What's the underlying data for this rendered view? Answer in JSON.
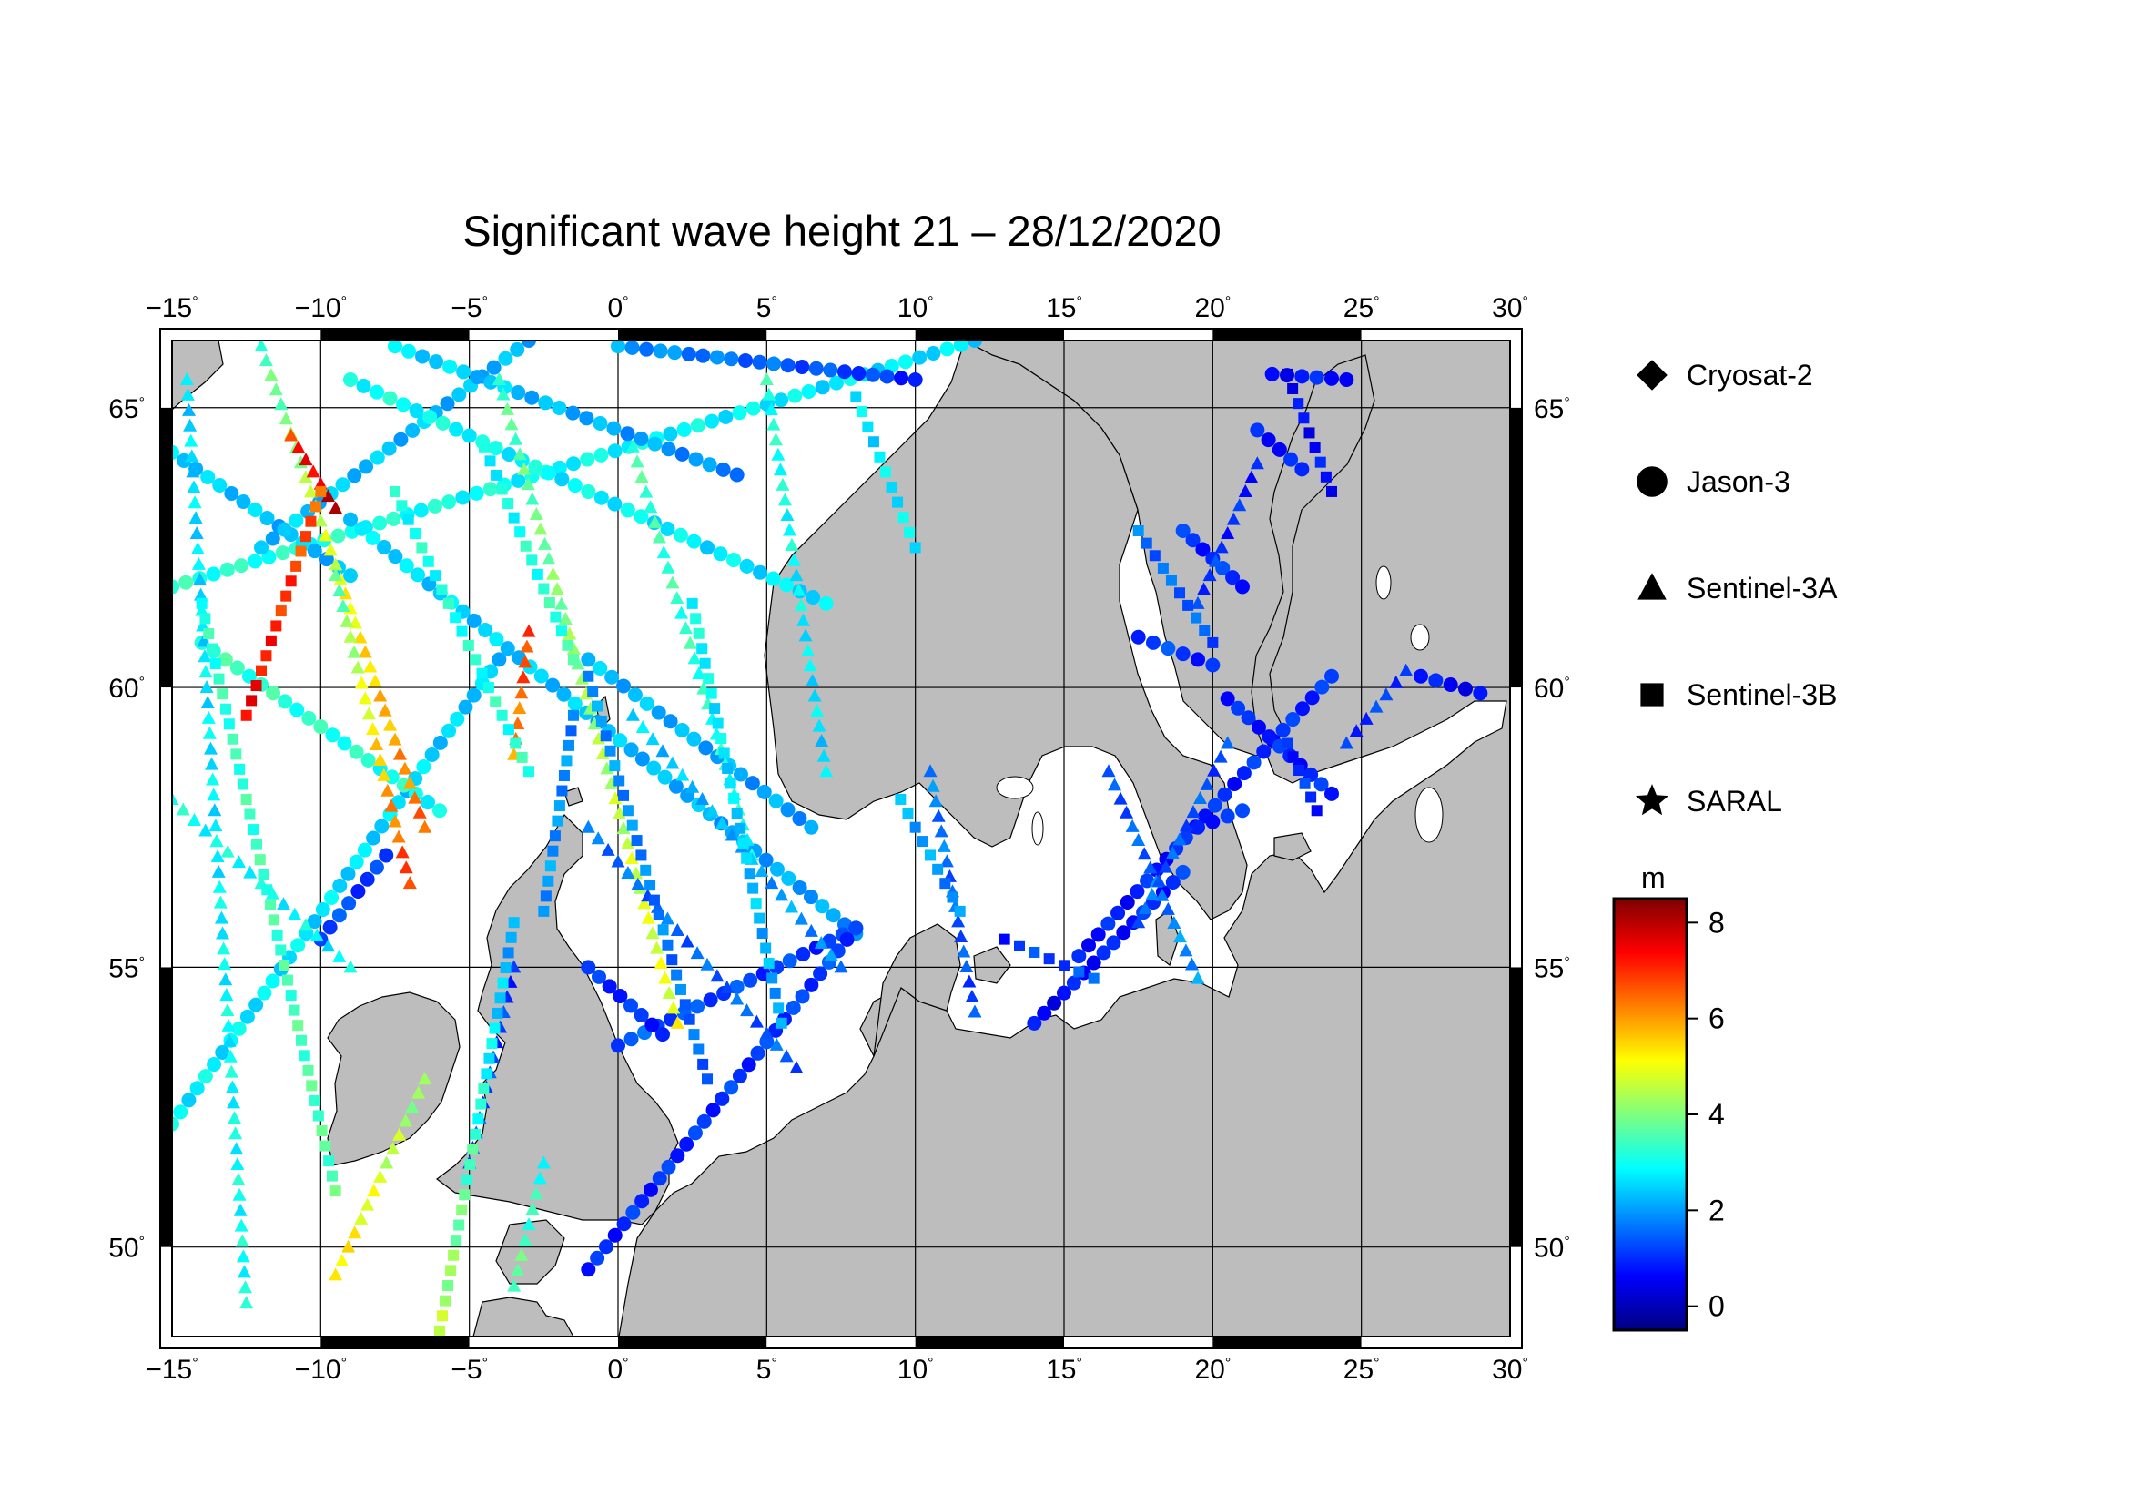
{
  "title": "Significant wave height 21 – 28/12/2020",
  "lon_ticks": [
    "−15",
    "−10",
    "−5",
    "0",
    "5",
    "10",
    "15",
    "20",
    "25",
    "30"
  ],
  "lat_ticks": [
    "65",
    "60",
    "55",
    "50"
  ],
  "degree_symbol": "°",
  "legend": {
    "items": [
      {
        "label": "Cryosat-2",
        "marker": "diamond"
      },
      {
        "label": "Jason-3",
        "marker": "circle"
      },
      {
        "label": "Sentinel-3A",
        "marker": "triangle"
      },
      {
        "label": "Sentinel-3B",
        "marker": "square"
      },
      {
        "label": "SARAL",
        "marker": "star"
      }
    ]
  },
  "colorbar": {
    "unit": "m",
    "ticks": [
      "8",
      "6",
      "4",
      "2",
      "0"
    ],
    "range": [
      -0.5,
      8.5
    ],
    "colormap": "jet"
  },
  "colors": {
    "land": "#bdbdbd",
    "sea": "#ffffff",
    "frame": "#000000"
  },
  "chart_data": {
    "type": "scatter",
    "title": "Significant wave height 21 – 28/12/2020",
    "xlim": [
      -15,
      30
    ],
    "ylim": [
      48.4,
      66.2
    ],
    "unit": "m",
    "tracks": [
      {
        "satellite": "Jason-3",
        "from": [
          -15,
          61.8
        ],
        "to": [
          12,
          66.2
        ],
        "hs": [
          3.2,
          2.6
        ]
      },
      {
        "satellite": "Jason-3",
        "from": [
          -15,
          52.2
        ],
        "to": [
          -4,
          60.5
        ],
        "hs": [
          2.8,
          2.4
        ]
      },
      {
        "satellite": "Jason-3",
        "from": [
          -15,
          64.2
        ],
        "to": [
          -9,
          62.0
        ],
        "hs": [
          2.5,
          2.2
        ]
      },
      {
        "satellite": "Jason-3",
        "from": [
          -12,
          62.5
        ],
        "to": [
          -3,
          66.2
        ],
        "hs": [
          2.4,
          2.2
        ]
      },
      {
        "satellite": "Jason-3",
        "from": [
          -14,
          60.8
        ],
        "to": [
          -6,
          57.8
        ],
        "hs": [
          3.4,
          3.0
        ]
      },
      {
        "satellite": "Jason-3",
        "from": [
          -9,
          63.0
        ],
        "to": [
          8,
          55.6
        ],
        "hs": [
          2.6,
          2.0
        ]
      },
      {
        "satellite": "Jason-3",
        "from": [
          -1,
          60.5
        ],
        "to": [
          6.5,
          57.5
        ],
        "hs": [
          2.3,
          2.0
        ]
      },
      {
        "satellite": "Jason-3",
        "from": [
          -7.5,
          66.1
        ],
        "to": [
          4,
          63.8
        ],
        "hs": [
          2.6,
          1.8
        ]
      },
      {
        "satellite": "Jason-3",
        "from": [
          0,
          66.1
        ],
        "to": [
          10,
          65.5
        ],
        "hs": [
          2.0,
          1.0
        ]
      },
      {
        "satellite": "Jason-3",
        "from": [
          -9,
          65.5
        ],
        "to": [
          7,
          61.5
        ],
        "hs": [
          3.0,
          2.6
        ]
      },
      {
        "satellite": "Jason-3",
        "from": [
          -10,
          55.5
        ],
        "to": [
          -7.8,
          57.0
        ],
        "hs": [
          1.4,
          1.0
        ]
      },
      {
        "satellite": "Jason-3",
        "from": [
          0,
          53.6
        ],
        "to": [
          8,
          55.7
        ],
        "hs": [
          1.4,
          1.0
        ]
      },
      {
        "satellite": "Jason-3",
        "from": [
          -1,
          49.6
        ],
        "to": [
          8,
          55.7
        ],
        "hs": [
          0.9,
          1.2
        ]
      },
      {
        "satellite": "Jason-3",
        "from": [
          -1,
          55.0
        ],
        "to": [
          1.5,
          53.8
        ],
        "hs": [
          1.0,
          1.0
        ]
      },
      {
        "satellite": "Jason-3",
        "from": [
          14,
          54.0
        ],
        "to": [
          19,
          56.7
        ],
        "hs": [
          0.6,
          1.0
        ]
      },
      {
        "satellite": "Jason-3",
        "from": [
          15.5,
          55.2
        ],
        "to": [
          24,
          60.2
        ],
        "hs": [
          0.8,
          1.0
        ]
      },
      {
        "satellite": "Jason-3",
        "from": [
          19.5,
          57.5
        ],
        "to": [
          21,
          57.8
        ],
        "hs": [
          1.0,
          1.0
        ]
      },
      {
        "satellite": "Jason-3",
        "from": [
          17.5,
          60.9
        ],
        "to": [
          20,
          60.4
        ],
        "hs": [
          1.2,
          1.0
        ]
      },
      {
        "satellite": "Jason-3",
        "from": [
          20.5,
          59.8
        ],
        "to": [
          24,
          58.1
        ],
        "hs": [
          0.9,
          0.9
        ]
      },
      {
        "satellite": "Jason-3",
        "from": [
          27,
          60.2
        ],
        "to": [
          29,
          59.9
        ],
        "hs": [
          0.7,
          0.6
        ]
      },
      {
        "satellite": "Jason-3",
        "from": [
          19,
          62.8
        ],
        "to": [
          21,
          61.8
        ],
        "hs": [
          1.0,
          1.0
        ]
      },
      {
        "satellite": "Jason-3",
        "from": [
          21.5,
          64.6
        ],
        "to": [
          23,
          63.9
        ],
        "hs": [
          0.8,
          0.8
        ]
      },
      {
        "satellite": "Jason-3",
        "from": [
          22,
          65.6
        ],
        "to": [
          24.5,
          65.5
        ],
        "hs": [
          0.7,
          0.8
        ]
      },
      {
        "satellite": "Sentinel-3A",
        "from": [
          -12,
          66.1
        ],
        "to": [
          -6.5,
          57.5
        ],
        "hs": [
          3.5,
          6.5
        ]
      },
      {
        "satellite": "Sentinel-3A",
        "from": [
          -11,
          64.5
        ],
        "to": [
          -9.5,
          63.2
        ],
        "hs": [
          7.0,
          8.0
        ]
      },
      {
        "satellite": "Sentinel-3A",
        "from": [
          -15,
          58.0
        ],
        "to": [
          -9,
          55.0
        ],
        "hs": [
          3.0,
          2.8
        ]
      },
      {
        "satellite": "Sentinel-3A",
        "from": [
          -14.5,
          65.5
        ],
        "to": [
          -12.5,
          49.0
        ],
        "hs": [
          2.5,
          3.0
        ]
      },
      {
        "satellite": "Sentinel-3A",
        "from": [
          -9.5,
          62.0
        ],
        "to": [
          -7,
          56.5
        ],
        "hs": [
          3.5,
          7.0
        ]
      },
      {
        "satellite": "Sentinel-3A",
        "from": [
          -3,
          61.0
        ],
        "to": [
          -3.5,
          58.8
        ],
        "hs": [
          7.0,
          6.0
        ]
      },
      {
        "satellite": "Sentinel-3A",
        "from": [
          -4,
          65.5
        ],
        "to": [
          2,
          54.0
        ],
        "hs": [
          3.5,
          5.0
        ]
      },
      {
        "satellite": "Sentinel-3A",
        "from": [
          0.5,
          64.3
        ],
        "to": [
          4.5,
          57.0
        ],
        "hs": [
          3.5,
          3.0
        ]
      },
      {
        "satellite": "Sentinel-3A",
        "from": [
          0.5,
          59.5
        ],
        "to": [
          7.5,
          55.0
        ],
        "hs": [
          2.5,
          1.8
        ]
      },
      {
        "satellite": "Sentinel-3A",
        "from": [
          -1,
          57.5
        ],
        "to": [
          6,
          53.2
        ],
        "hs": [
          1.6,
          1.4
        ]
      },
      {
        "satellite": "Sentinel-3A",
        "from": [
          5,
          65.5
        ],
        "to": [
          7,
          58.5
        ],
        "hs": [
          3.2,
          2.5
        ]
      },
      {
        "satellite": "Sentinel-3A",
        "from": [
          -3.5,
          55.0
        ],
        "to": [
          -5,
          51.5
        ],
        "hs": [
          1.0,
          1.4
        ]
      },
      {
        "satellite": "Sentinel-3A",
        "from": [
          -9.5,
          49.5
        ],
        "to": [
          -6.5,
          53.0
        ],
        "hs": [
          5.5,
          4.0
        ]
      },
      {
        "satellite": "Sentinel-3A",
        "from": [
          -3.5,
          49.3
        ],
        "to": [
          -2.5,
          51.5
        ],
        "hs": [
          3.8,
          3.0
        ]
      },
      {
        "satellite": "Sentinel-3A",
        "from": [
          10.5,
          58.5
        ],
        "to": [
          12,
          54.2
        ],
        "hs": [
          1.8,
          1.2
        ]
      },
      {
        "satellite": "Sentinel-3A",
        "from": [
          16.5,
          58.5
        ],
        "to": [
          19.5,
          54.8
        ],
        "hs": [
          1.2,
          2.0
        ]
      },
      {
        "satellite": "Sentinel-3A",
        "from": [
          20.5,
          59.0
        ],
        "to": [
          17.5,
          55.8
        ],
        "hs": [
          1.2,
          1.6
        ]
      },
      {
        "satellite": "Sentinel-3A",
        "from": [
          21.5,
          64.0
        ],
        "to": [
          19.5,
          61.5
        ],
        "hs": [
          0.8,
          1.2
        ]
      },
      {
        "satellite": "Sentinel-3A",
        "from": [
          26.5,
          60.3
        ],
        "to": [
          24.5,
          59.0
        ],
        "hs": [
          1.2,
          1.0
        ]
      },
      {
        "satellite": "Sentinel-3B",
        "from": [
          -14,
          61.5
        ],
        "to": [
          -9.5,
          51.0
        ],
        "hs": [
          3.2,
          3.6
        ]
      },
      {
        "satellite": "Sentinel-3B",
        "from": [
          -12.5,
          59.5
        ],
        "to": [
          -10,
          63.5
        ],
        "hs": [
          7.5,
          6.5
        ]
      },
      {
        "satellite": "Sentinel-3B",
        "from": [
          -6,
          48.5
        ],
        "to": [
          -3.5,
          55.8
        ],
        "hs": [
          4.5,
          2.0
        ]
      },
      {
        "satellite": "Sentinel-3B",
        "from": [
          -7.5,
          63.5
        ],
        "to": [
          -3,
          58.5
        ],
        "hs": [
          3.0,
          3.2
        ]
      },
      {
        "satellite": "Sentinel-3B",
        "from": [
          -4.5,
          64.3
        ],
        "to": [
          -1.5,
          60.5
        ],
        "hs": [
          2.8,
          3.4
        ]
      },
      {
        "satellite": "Sentinel-3B",
        "from": [
          -1.5,
          59.5
        ],
        "to": [
          -2.5,
          56.0
        ],
        "hs": [
          1.8,
          2.0
        ]
      },
      {
        "satellite": "Sentinel-3B",
        "from": [
          -1,
          60.2
        ],
        "to": [
          3,
          53.0
        ],
        "hs": [
          2.0,
          1.5
        ]
      },
      {
        "satellite": "Sentinel-3B",
        "from": [
          2.5,
          61.5
        ],
        "to": [
          5.5,
          54.0
        ],
        "hs": [
          3.0,
          2.0
        ]
      },
      {
        "satellite": "Sentinel-3B",
        "from": [
          8,
          65.2
        ],
        "to": [
          10,
          62.5
        ],
        "hs": [
          2.6,
          2.8
        ]
      },
      {
        "satellite": "Sentinel-3B",
        "from": [
          9.5,
          58.0
        ],
        "to": [
          11.5,
          56.0
        ],
        "hs": [
          2.2,
          1.8
        ]
      },
      {
        "satellite": "Sentinel-3B",
        "from": [
          17.5,
          62.8
        ],
        "to": [
          20,
          60.8
        ],
        "hs": [
          1.6,
          1.4
        ]
      },
      {
        "satellite": "Sentinel-3B",
        "from": [
          22.5,
          59.0
        ],
        "to": [
          23.5,
          57.8
        ],
        "hs": [
          1.0,
          1.0
        ]
      },
      {
        "satellite": "Sentinel-3B",
        "from": [
          22.5,
          65.6
        ],
        "to": [
          24,
          63.5
        ],
        "hs": [
          0.6,
          0.7
        ]
      },
      {
        "satellite": "Sentinel-3B",
        "from": [
          13,
          55.5
        ],
        "to": [
          16,
          54.8
        ],
        "hs": [
          1.0,
          1.4
        ]
      }
    ]
  }
}
